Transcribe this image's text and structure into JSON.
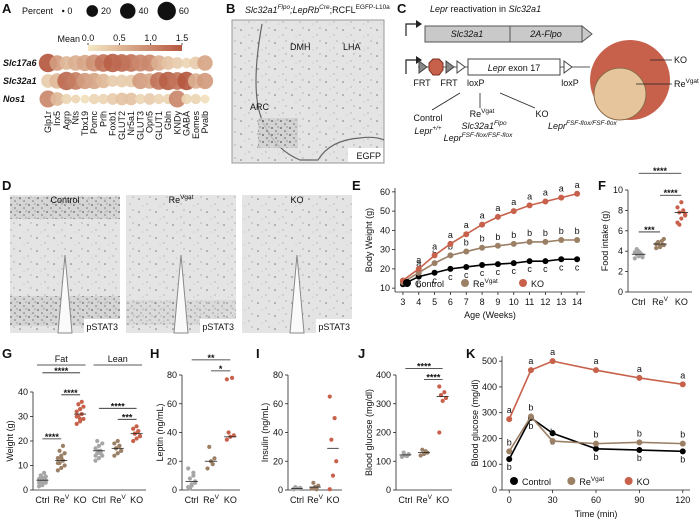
{
  "chart_data": [
    {
      "panel": "A",
      "type": "dot_plot",
      "size_title": "Percent",
      "size_ticks": [
        0,
        20,
        40,
        60
      ],
      "color_title": "Mean",
      "color_lim": [
        0,
        1.5
      ],
      "color_ticks": [
        {
          "value": 0,
          "label": "0.0"
        },
        0.5,
        {
          "value": 1,
          "label": "1.0"
        },
        1.5
      ],
      "color_range": [
        "#f5e9c6",
        "#b5573f"
      ],
      "categories": [
        "Glp1r",
        "Irx5",
        "Agrp",
        "Nts",
        "Tbx19",
        "Pomc",
        "Prlh",
        "Foxb1",
        "GLUT2",
        "Nr5a1",
        "GLUT3",
        "Opn5",
        "GLUT1",
        "Gbln",
        "KNDy",
        "GABA",
        "Eomes",
        "Pvalb"
      ],
      "series": [
        {
          "name": "Slc17a6",
          "values": [
            1.5,
            0.8,
            0.5,
            0.6,
            0.7,
            0.9,
            1.2,
            1.4,
            1.3,
            1.2,
            1.0,
            1.0,
            0.6,
            0.4,
            0.3,
            0.2,
            0.3,
            0.7
          ],
          "sizes": [
            60,
            40,
            30,
            40,
            45,
            50,
            55,
            60,
            55,
            55,
            50,
            50,
            40,
            30,
            20,
            15,
            25,
            40
          ]
        },
        {
          "name": "Slc32a1",
          "values": [
            0.3,
            0.5,
            1.3,
            1.1,
            0.8,
            0.7,
            0.5,
            0.3,
            0.3,
            0.3,
            0.8,
            0.7,
            1.2,
            1.4,
            1.2,
            1.5,
            0.6,
            0.8
          ],
          "sizes": [
            30,
            40,
            60,
            55,
            45,
            45,
            35,
            20,
            25,
            25,
            45,
            40,
            55,
            60,
            55,
            60,
            40,
            45
          ]
        },
        {
          "name": "Nos1",
          "values": [
            1.0,
            0.5,
            0.2,
            0.2,
            0.1,
            0.2,
            0.2,
            0.3,
            0.4,
            0.4,
            0.2,
            0.3,
            0.2,
            0.2,
            1.0,
            0.2,
            0.2,
            0.1
          ],
          "sizes": [
            50,
            30,
            15,
            10,
            10,
            15,
            15,
            20,
            25,
            25,
            15,
            20,
            15,
            15,
            50,
            15,
            15,
            10
          ]
        }
      ]
    },
    {
      "panel": "E",
      "type": "line",
      "xlabel": "Age (Weeks)",
      "ylabel": "Body Weight (g)",
      "x": [
        3,
        4,
        5,
        6,
        7,
        8,
        9,
        10,
        11,
        12,
        13,
        14
      ],
      "xlim": [
        2.5,
        14.5
      ],
      "xticks": [
        3,
        4,
        5,
        6,
        7,
        8,
        9,
        10,
        11,
        12,
        13,
        14
      ],
      "ylim": [
        8,
        62
      ],
      "yticks": [
        10,
        20,
        30,
        40,
        50,
        60
      ],
      "legend": "bottom",
      "series": [
        {
          "name": "Control",
          "color": "#000000",
          "letter_position": "below",
          "values": [
            12,
            16,
            18,
            20,
            21,
            22,
            22.5,
            23,
            24,
            24,
            25,
            25
          ],
          "letters": [
            null,
            "b",
            "c",
            "c",
            "c",
            "c",
            "c",
            "c",
            "c",
            "c",
            "c",
            "c"
          ]
        },
        {
          "name": {
            "text": "Re",
            "sup": "Vgat"
          },
          "color": "#9b8066",
          "letter_position": "above",
          "values": [
            13,
            18,
            23,
            27,
            29,
            31,
            32,
            33,
            34,
            34,
            35,
            35
          ],
          "letters": [
            null,
            "a",
            "b",
            "b",
            "b",
            "b",
            "b",
            "b",
            "b",
            "b",
            "b",
            "b"
          ]
        },
        {
          "name": "KO",
          "color": "#c8614b",
          "letter_position": "above",
          "values": [
            14,
            20,
            27,
            33,
            38,
            43,
            47,
            50,
            53,
            55,
            57,
            59
          ],
          "letters": [
            null,
            "a",
            "a",
            "a",
            "a",
            "a",
            "a",
            "a",
            "a",
            "a",
            "a",
            "a"
          ]
        }
      ]
    },
    {
      "panel": "F",
      "type": "strip",
      "ylabel": "Food intake (g)",
      "ylim": [
        0,
        10
      ],
      "yticks": [
        0,
        2,
        4,
        6,
        8,
        10
      ],
      "categories": [
        "Ctrl",
        {
          "text": "Re",
          "sup": "V"
        },
        "KO"
      ],
      "colors": [
        "#a6a6a6",
        "#9b8066",
        "#c8614b"
      ],
      "points": [
        [
          3.3,
          3.5,
          3.6,
          3.7,
          3.8,
          3.9,
          4.0,
          3.4,
          4.2,
          3.6
        ],
        [
          4.3,
          4.5,
          4.6,
          4.8,
          5.0,
          4.7,
          4.4,
          5.2,
          4.9,
          4.6
        ],
        [
          6.8,
          7.2,
          7.6,
          7.8,
          8.0,
          8.3,
          8.8,
          7.5,
          6.6,
          7.9
        ]
      ],
      "means": [
        3.7,
        4.7,
        7.8
      ],
      "significance": [
        {
          "between": [
            0,
            2
          ],
          "label": "****"
        },
        {
          "between": [
            1,
            2
          ],
          "label": "****"
        },
        {
          "between": [
            0,
            1
          ],
          "label": "***"
        }
      ]
    },
    {
      "panel": "G",
      "type": "grouped_strip",
      "ylabel": "Weight (g)",
      "ylim": [
        0,
        40
      ],
      "yticks": [
        0,
        10,
        20,
        30,
        40
      ],
      "colors": [
        "#a6a6a6",
        "#9b8066",
        "#c8614b"
      ],
      "groups": [
        {
          "name": "Fat",
          "categories": [
            "Ctrl",
            {
              "text": "Re",
              "sup": "V"
            },
            "KO"
          ],
          "points": [
            [
              1.5,
              2,
              3,
              3.5,
              4,
              4.5,
              5,
              5.5,
              6,
              7,
              3,
              2.5,
              4,
              5
            ],
            [
              8,
              9,
              10,
              11,
              12,
              13,
              14,
              15,
              16,
              18,
              11,
              13
            ],
            [
              27,
              28,
              29,
              30,
              31,
              32,
              33,
              34,
              35,
              36,
              30,
              29
            ]
          ],
          "means": [
            4,
            12,
            31
          ],
          "significance": [
            {
              "between": [
                0,
                2
              ],
              "label": "****"
            },
            {
              "between": [
                1,
                2
              ],
              "label": "****"
            },
            {
              "between": [
                0,
                1
              ],
              "label": "****"
            }
          ]
        },
        {
          "name": "Lean",
          "categories": [
            "Ctrl",
            {
              "text": "Re",
              "sup": "V"
            },
            "KO"
          ],
          "points": [
            [
              12,
              13,
              14,
              15,
              16,
              17,
              18,
              19,
              20,
              15,
              14,
              16
            ],
            [
              14,
              15,
              16,
              17,
              18,
              19,
              20,
              16,
              17,
              18
            ],
            [
              20,
              21,
              22,
              23,
              24,
              25,
              26,
              22,
              23,
              24
            ]
          ],
          "means": [
            16,
            17,
            23
          ],
          "significance": [
            {
              "between": [
                0,
                2
              ],
              "label": "****"
            },
            {
              "between": [
                1,
                2
              ],
              "label": "***"
            }
          ]
        }
      ]
    },
    {
      "panel": "H",
      "type": "strip",
      "ylabel": "Leptin (ng/mL)",
      "ylim": [
        0,
        80
      ],
      "yticks": [
        0,
        20,
        40,
        60,
        80
      ],
      "categories": [
        "Ctrl",
        {
          "text": "Re",
          "sup": "V"
        },
        "KO"
      ],
      "colors": [
        "#a6a6a6",
        "#9b8066",
        "#c8614b"
      ],
      "points": [
        [
          2,
          3,
          5,
          8,
          12,
          15,
          4,
          6,
          1,
          10
        ],
        [
          15,
          20,
          22,
          30,
          18
        ],
        [
          35,
          37,
          38,
          40,
          78,
          77
        ]
      ],
      "means": [
        6,
        20,
        37
      ],
      "significance": [
        {
          "between": [
            0,
            2
          ],
          "label": "**"
        },
        {
          "between": [
            1,
            2
          ],
          "label": "*"
        }
      ]
    },
    {
      "panel": "I",
      "type": "strip",
      "ylabel": "Insulin (ng/mL)",
      "ylim": [
        0,
        80
      ],
      "yticks": [
        0,
        20,
        40,
        60,
        80
      ],
      "categories": [
        "Ctrl",
        {
          "text": "Re",
          "sup": "V"
        },
        "KO"
      ],
      "colors": [
        "#a6a6a6",
        "#9b8066",
        "#c8614b"
      ],
      "points": [
        [
          0.5,
          1,
          1.5,
          2,
          1,
          0.8
        ],
        [
          1,
          2,
          3,
          5,
          0.5
        ],
        [
          0.5,
          10,
          20,
          35,
          50,
          65
        ]
      ],
      "means": [
        1,
        2,
        29
      ]
    },
    {
      "panel": "J",
      "type": "strip",
      "ylabel": "Blood glucose (mg/dl)",
      "ylim": [
        0,
        400
      ],
      "yticks": [
        0,
        100,
        200,
        300,
        400
      ],
      "categories": [
        "Ctrl",
        {
          "text": "Re",
          "sup": "V"
        },
        "KO"
      ],
      "colors": [
        "#a6a6a6",
        "#9b8066",
        "#c8614b"
      ],
      "points": [
        [
          115,
          120,
          125,
          130,
          118
        ],
        [
          120,
          125,
          130,
          140,
          135
        ],
        [
          200,
          310,
          320,
          330,
          340,
          360
        ]
      ],
      "means": [
        122,
        130,
        325
      ],
      "significance": [
        {
          "between": [
            0,
            2
          ],
          "label": "****"
        },
        {
          "between": [
            1,
            2
          ],
          "label": "****"
        }
      ]
    },
    {
      "panel": "K",
      "type": "line",
      "xlabel": "Time (min)",
      "ylabel": "Blood glucose (mg/dl)",
      "x": [
        0,
        15,
        30,
        60,
        90,
        120
      ],
      "xlim": [
        -5,
        125
      ],
      "xticks": [
        0,
        30,
        60,
        90,
        120
      ],
      "ylim": [
        0,
        520
      ],
      "yticks": [
        0,
        100,
        200,
        300,
        400,
        500
      ],
      "legend": "bottom",
      "series": [
        {
          "name": "Control",
          "color": "#000000",
          "letter_position": "below",
          "values": [
            120,
            280,
            220,
            160,
            155,
            150
          ],
          "letters": [
            "b",
            "b",
            "b",
            "b",
            "b",
            "b"
          ]
        },
        {
          "name": {
            "text": "Re",
            "sup": "Vgat"
          },
          "color": "#9b8066",
          "letter_position": "above",
          "values": [
            150,
            285,
            190,
            180,
            185,
            180
          ],
          "letters": [
            "b",
            "b",
            "b",
            "b",
            "b",
            "b"
          ]
        },
        {
          "name": "KO",
          "color": "#c8614b",
          "letter_position": "above",
          "values": [
            275,
            465,
            500,
            465,
            435,
            410
          ],
          "letters": [
            "a",
            "a",
            "a",
            "a",
            "a",
            "a"
          ]
        }
      ]
    }
  ],
  "panel_b": {
    "panel": "B",
    "title": [
      {
        "text": "Slc32a1",
        "sup": "Flpo",
        "italic": true
      },
      {
        "text": ";LepRb",
        "sup": "Cre",
        "italic": true
      },
      {
        "text": ";RCFL",
        "sup": "EGFP-L10a"
      }
    ],
    "regions": [
      "DMH",
      "LHA",
      "ARC"
    ],
    "stain": "EGFP"
  },
  "panel_c": {
    "panel": "C",
    "title": [
      {
        "text": "Lepr",
        "italic": true
      },
      {
        "text": " reactivation in "
      },
      {
        "text": "Slc32a1",
        "italic": true
      }
    ],
    "construct_1": [
      "Slc32a1",
      "2A-Flpo"
    ],
    "construct_2": {
      "sites": [
        "FRT",
        "FRT",
        "loxP",
        "loxP"
      ],
      "exon": [
        {
          "text": "Lepr",
          "italic": true
        },
        {
          "text": " exon 17"
        }
      ]
    },
    "outcomes": [
      {
        "name": "Control",
        "genotype": [
          {
            "text": "Lepr",
            "sup": "+/+",
            "italic": true
          }
        ]
      },
      {
        "name": {
          "text": "Re",
          "sup": "Vgat"
        },
        "genotype": [
          {
            "text": "Slc32a1",
            "sup": "Flpo",
            "italic": true
          },
          {
            "text": "Lepr",
            "sup": "FSF-flox/FSF-flox",
            "italic": true
          }
        ]
      },
      {
        "name": "KO",
        "genotype": [
          {
            "text": "Lepr",
            "sup": "FSF-flox/FSF-flox",
            "italic": true
          }
        ]
      }
    ],
    "venn": [
      "KO",
      {
        "text": "Re",
        "sup": "Vgat"
      }
    ]
  },
  "panel_d": {
    "panel": "D",
    "images": [
      {
        "title": "Control",
        "stain": "pSTAT3"
      },
      {
        "title": {
          "text": "Re",
          "sup": "Vgat"
        },
        "stain": "pSTAT3"
      },
      {
        "title": "KO",
        "stain": "pSTAT3"
      }
    ]
  }
}
